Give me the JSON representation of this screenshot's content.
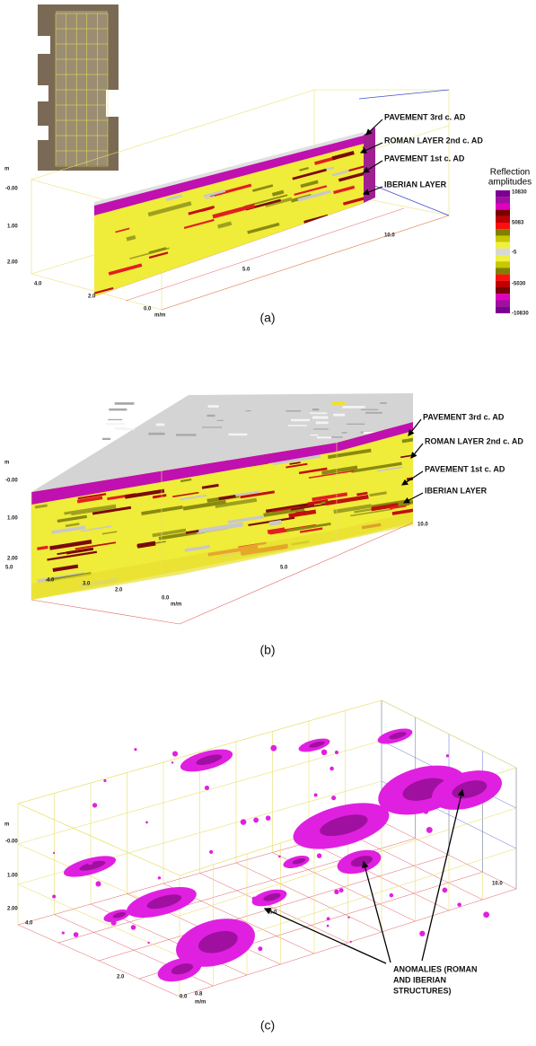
{
  "panels": [
    {
      "caption": "(a)",
      "annotations": [
        "PAVEMENT 3rd c. AD",
        "ROMAN LAYER 2nd c. AD",
        "PAVEMENT 1st c. AD",
        "IBERIAN LAYER"
      ],
      "axis_labels": [
        "m",
        "-0.00",
        "1.00",
        "2.00",
        "4.0",
        "2.0",
        "0.0",
        "m/m",
        "5.0",
        "10.0"
      ],
      "legend": {
        "title": [
          "Reflection",
          "amplitudes"
        ],
        "labels": [
          "10830",
          "5083",
          "-5",
          "-5030",
          "-10830"
        ]
      }
    },
    {
      "caption": "(b)",
      "annotations": [
        "PAVEMENT 3rd c. AD",
        "ROMAN LAYER 2nd c. AD",
        "PAVEMENT 1st c. AD",
        "IBERIAN LAYER"
      ],
      "axis_labels": [
        "m",
        "-0.00",
        "1.00",
        "2.00",
        "5.0",
        "4.0",
        "3.0",
        "2.0",
        "0.0",
        "m/m",
        "5.0",
        "10.0"
      ]
    },
    {
      "caption": "(c)",
      "annotations": [
        "ANOMALIES (ROMAN",
        "AND IBERIAN",
        "STRUCTURES)"
      ],
      "axis_labels": [
        "m",
        "-0.00",
        "1.00",
        "2.00",
        "4.0",
        "2.0",
        "0.0",
        "0.8",
        "m/m",
        "5.0",
        "10.0"
      ]
    }
  ]
}
